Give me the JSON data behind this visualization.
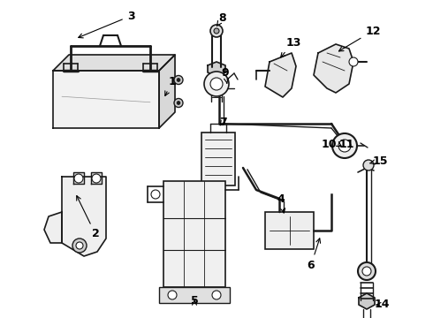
{
  "bg_color": "#ffffff",
  "lc": "#1a1a1a",
  "lw": 1.0,
  "figsize": [
    4.9,
    3.6
  ],
  "dpi": 100
}
